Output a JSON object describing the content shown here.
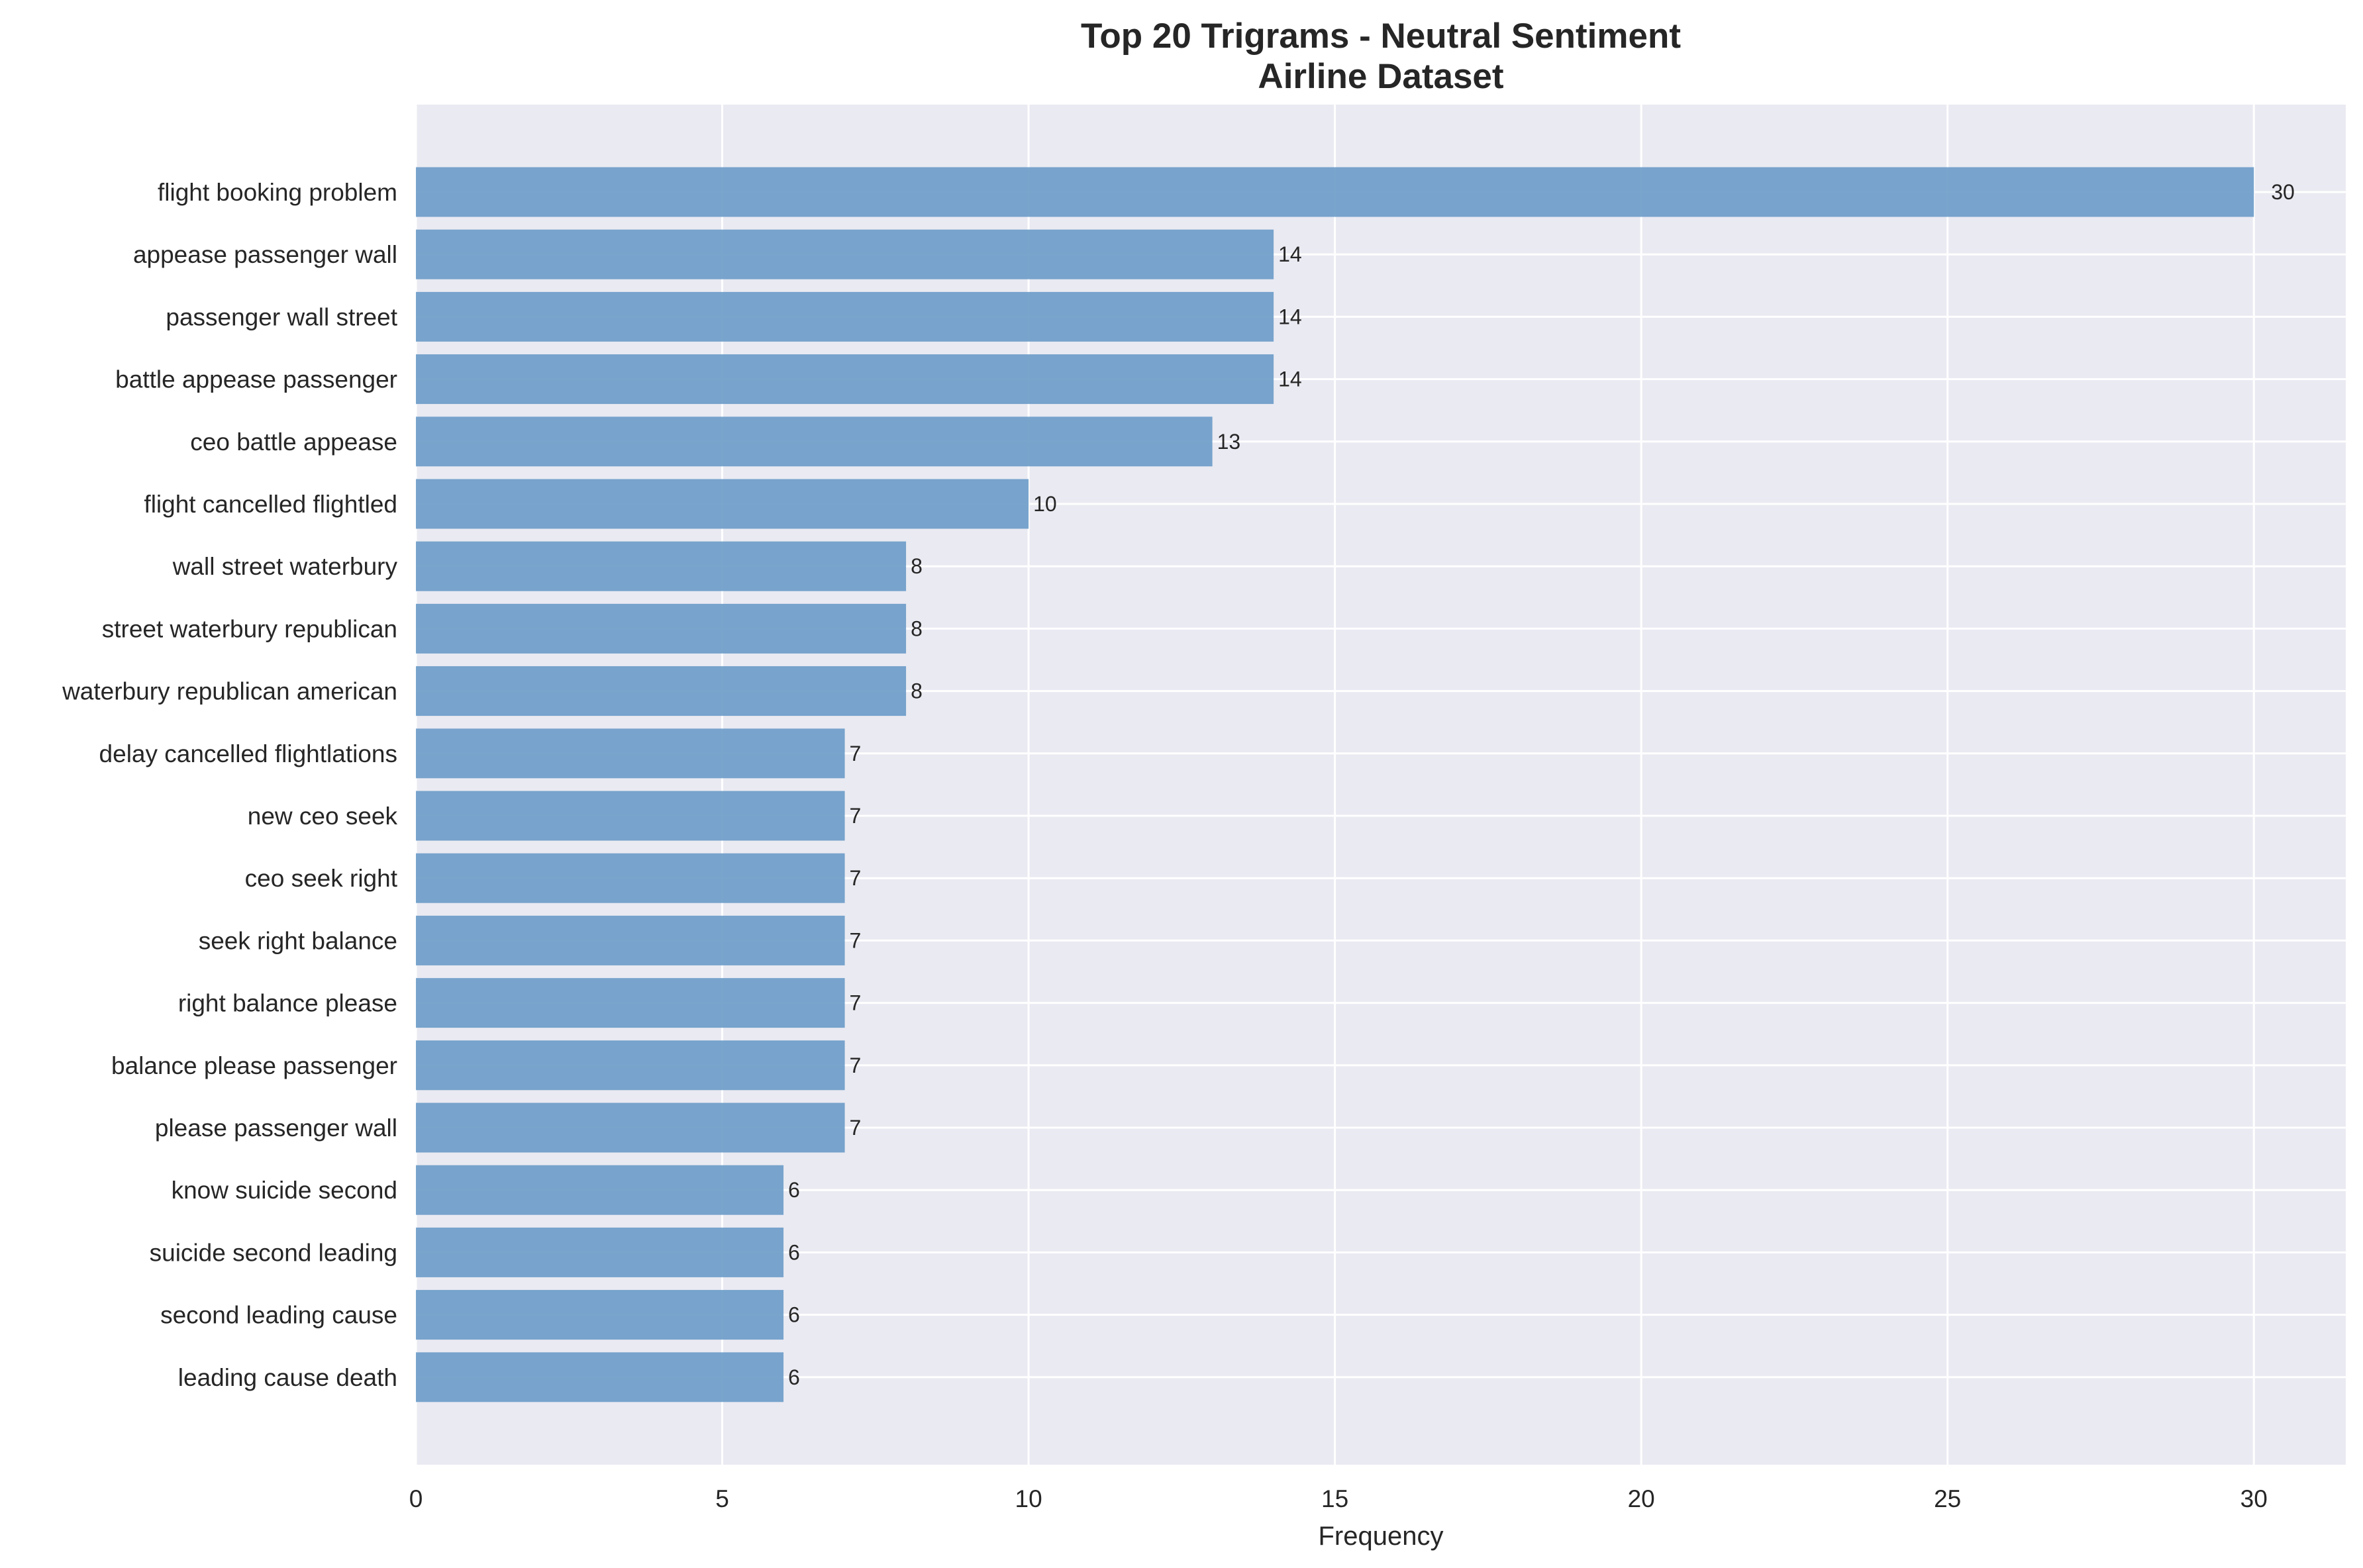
{
  "chart_data": {
    "type": "bar",
    "orientation": "horizontal",
    "title": "Top 20 Trigrams - Neutral Sentiment",
    "subtitle": "Airline Dataset",
    "xlabel": "Frequency",
    "ylabel": "",
    "xlim": [
      0,
      31.5
    ],
    "xticks": [
      0,
      5,
      10,
      15,
      20,
      25,
      30
    ],
    "grid": true,
    "bar_color": "#6a9bc8",
    "background_color": "#eaeaf2",
    "categories": [
      "flight booking problem",
      "appease passenger wall",
      "passenger wall street",
      "battle appease passenger",
      "ceo battle appease",
      "flight cancelled flightled",
      "wall street waterbury",
      "street waterbury republican",
      "waterbury republican american",
      "delay cancelled flightlations",
      "new ceo seek",
      "ceo seek right",
      "seek right balance",
      "right balance please",
      "balance please passenger",
      "please passenger wall",
      "know suicide second",
      "suicide second leading",
      "second leading cause",
      "leading cause death"
    ],
    "values": [
      30,
      14,
      14,
      14,
      13,
      10,
      8,
      8,
      8,
      7,
      7,
      7,
      7,
      7,
      7,
      7,
      6,
      6,
      6,
      6
    ]
  }
}
